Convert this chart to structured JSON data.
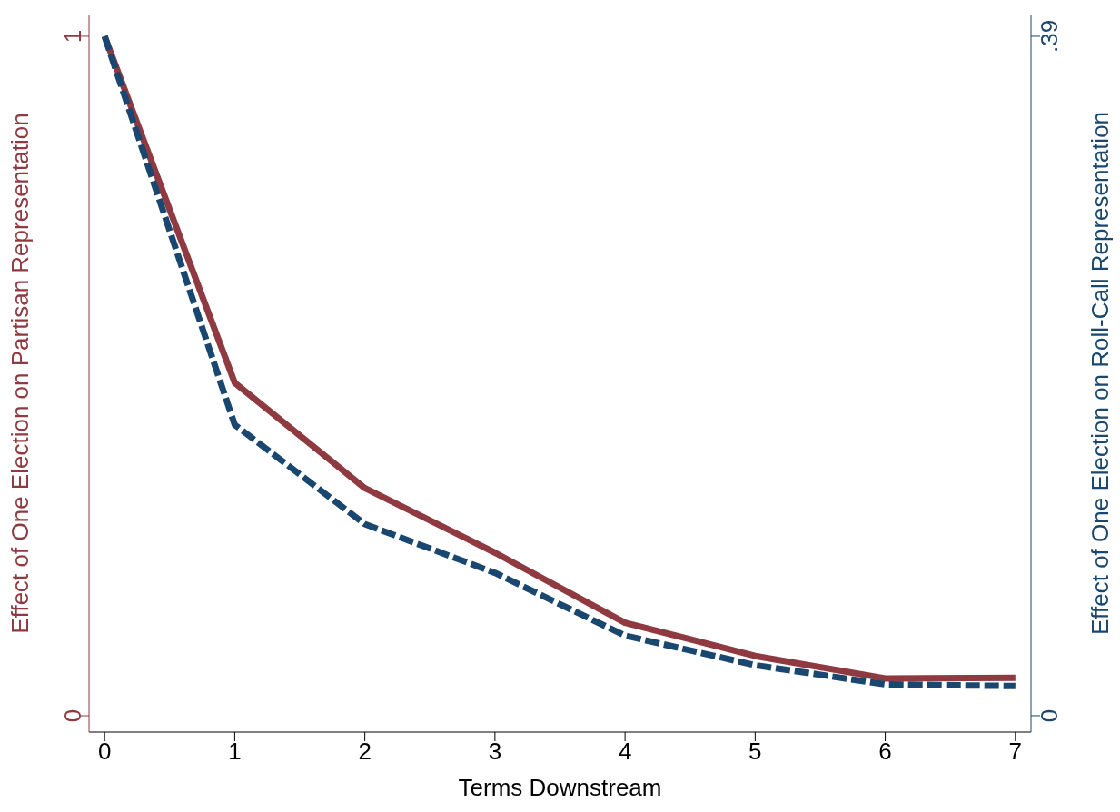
{
  "chart_data": {
    "type": "line",
    "xlabel": "Terms Downstream",
    "ylabel": "Effect of One Election on Partisan Representation",
    "y2label": "Effect of One Election on Roll-Call Representation",
    "x": [
      0,
      1,
      2,
      3,
      4,
      5,
      6,
      7
    ],
    "series": [
      {
        "color": "#8e3a40",
        "values": [
          1.0,
          0.49,
          0.335,
          0.24,
          0.137,
          0.088,
          0.055,
          0.056
        ],
        "line_style": "solid"
      },
      {
        "color": "#1a476f",
        "values": [
          0.39,
          0.167,
          0.11,
          0.082,
          0.046,
          0.029,
          0.018,
          0.017
        ],
        "axis": "y2",
        "line_style": "dashed"
      }
    ],
    "xlim": [
      -0.12,
      7.12
    ],
    "xticks": [
      0,
      1,
      2,
      3,
      4,
      5,
      6,
      7
    ],
    "ylim": [
      -0.024,
      1.032
    ],
    "yticks": [
      0,
      1
    ],
    "y2lim": [
      -0.0094,
      0.4025
    ],
    "y2ticks": [
      0,
      {
        "value": 0.39,
        "label": ".39"
      }
    ],
    "grid": false,
    "legend": false,
    "marker": "none"
  }
}
